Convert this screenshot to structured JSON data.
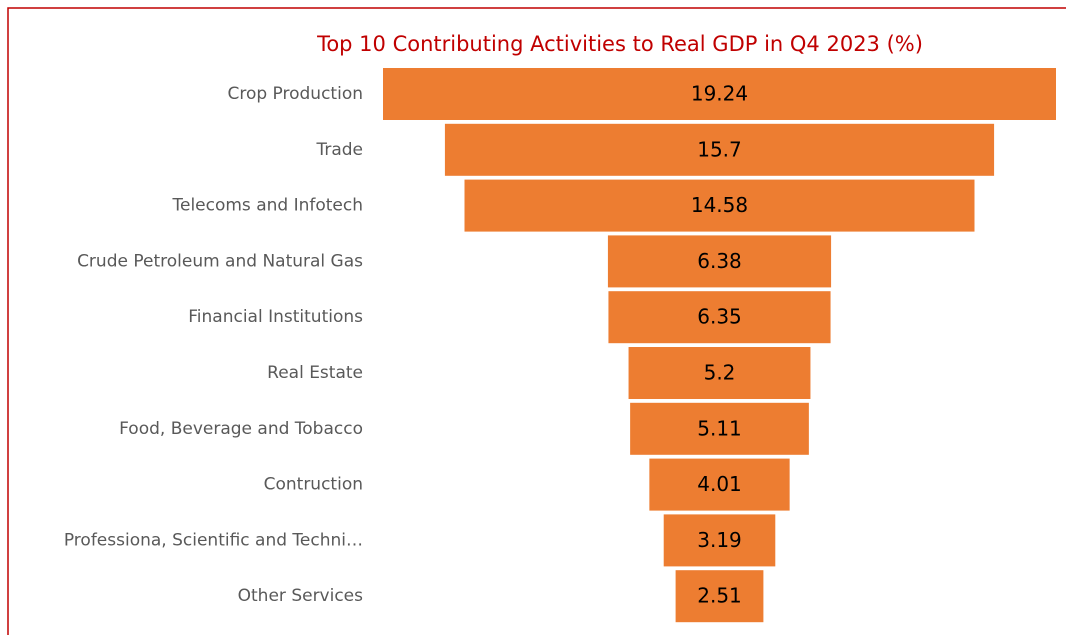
{
  "chart_data": {
    "type": "funnel",
    "title": "Top 10 Contributing Activities to Real GDP in Q4 2023 (%)",
    "categories": [
      "Crop Production",
      "Trade",
      "Telecoms and Infotech",
      "Crude Petroleum and Natural Gas",
      "Financial Institutions",
      "Real Estate",
      "Food, Beverage and Tobacco",
      "Contruction",
      "Professiona, Scientific and Techni…",
      "Other Services"
    ],
    "values": [
      19.24,
      15.7,
      14.58,
      6.38,
      6.35,
      5.2,
      5.11,
      4.01,
      3.19,
      2.51
    ],
    "color": "#ed7d31"
  }
}
